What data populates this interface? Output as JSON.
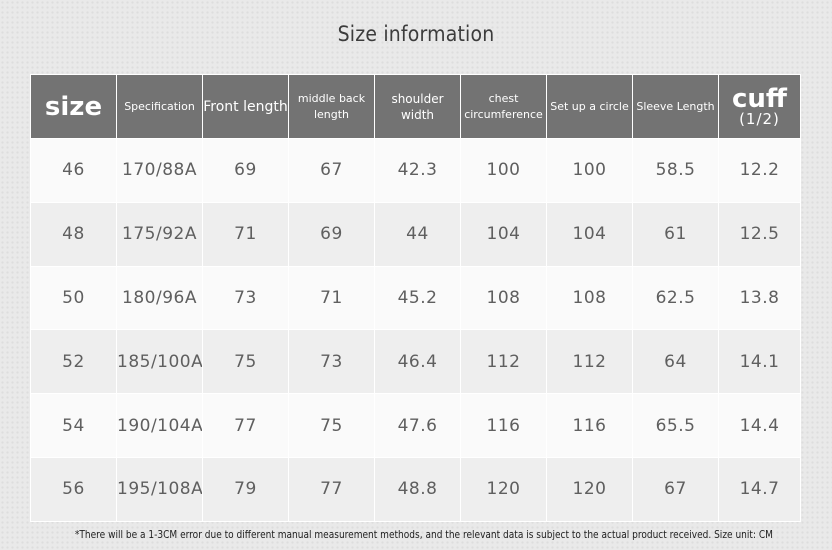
{
  "title": "Size information",
  "table": {
    "headers": {
      "size": "size",
      "specification": "Specification",
      "front_length": "Front length",
      "middle_back_length": "middle back length",
      "shoulder_width": "shoulder width",
      "chest_circumference": "chest circumference",
      "set_up_a_circle": "Set up a circle",
      "sleeve_length": "Sleeve Length",
      "cuff": "cuff",
      "cuff_sub": "(1/2)"
    },
    "rows": [
      [
        "46",
        "170/88A",
        "69",
        "67",
        "42.3",
        "100",
        "100",
        "58.5",
        "12.2"
      ],
      [
        "48",
        "175/92A",
        "71",
        "69",
        "44",
        "104",
        "104",
        "61",
        "12.5"
      ],
      [
        "50",
        "180/96A",
        "73",
        "71",
        "45.2",
        "108",
        "108",
        "62.5",
        "13.8"
      ],
      [
        "52",
        "185/100A",
        "75",
        "73",
        "46.4",
        "112",
        "112",
        "64",
        "14.1"
      ],
      [
        "54",
        "190/104A",
        "77",
        "75",
        "47.6",
        "116",
        "116",
        "65.5",
        "14.4"
      ],
      [
        "56",
        "195/108A",
        "79",
        "77",
        "48.8",
        "120",
        "120",
        "67",
        "14.7"
      ]
    ]
  },
  "footnote": "*There will be a 1-3CM error due to different manual measurement methods, and the relevant data is subject to the actual product received. Size unit: CM",
  "colors": {
    "header_bg": "#737373",
    "row_light": "#fafafa",
    "row_dark": "#eeeeee"
  }
}
